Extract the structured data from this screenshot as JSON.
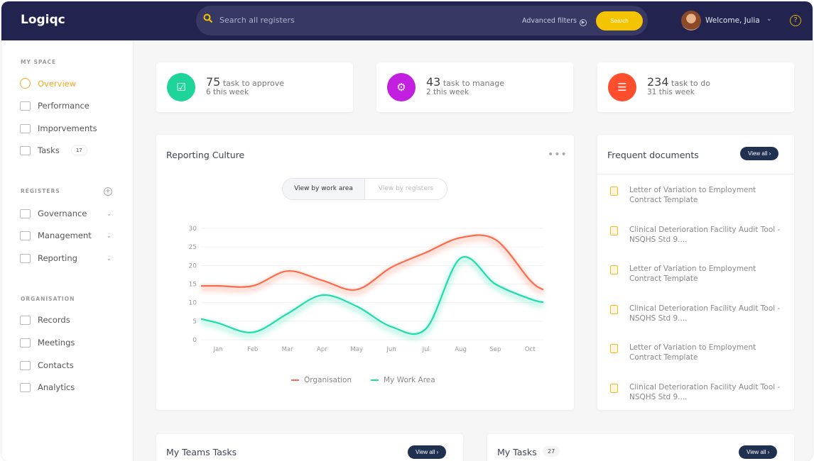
{
  "header": {
    "logo": "Logiqc",
    "search_placeholder": "Search all registers",
    "advanced_filters": "Advanced filters",
    "search_button": "Search",
    "welcome": "Welcome, Julia",
    "help": "?"
  },
  "sidebar": {
    "my_space": "MY SPACE",
    "registers": "REGISTERS",
    "organisation": "ORGANISATION",
    "items": [
      {
        "label": "Overview",
        "icon": "gauge-icon"
      },
      {
        "label": "Performance",
        "icon": "chart-icon"
      },
      {
        "label": "Imporvements",
        "icon": "thumbs-up-icon"
      },
      {
        "label": "Tasks",
        "icon": "checkbox-icon",
        "badge": "17"
      }
    ],
    "register_items": [
      {
        "label": "Governance",
        "icon": "megaphone-icon"
      },
      {
        "label": "Management",
        "icon": "users-icon"
      },
      {
        "label": "Reporting",
        "icon": "flag-icon"
      }
    ],
    "org_items": [
      {
        "label": "Records",
        "icon": "book-icon"
      },
      {
        "label": "Meetings",
        "icon": "pin-icon"
      },
      {
        "label": "Contacts",
        "icon": "list-icon"
      },
      {
        "label": "Analytics",
        "icon": "bar-chart-icon"
      }
    ]
  },
  "stats": [
    {
      "count": "75",
      "label": "task to approve",
      "sub": "6 this week",
      "color": "#1ed49a",
      "icon": "calendar-check-icon"
    },
    {
      "count": "43",
      "label": "task to manage",
      "sub": "2 this week",
      "color": "#c21fe0",
      "icon": "gear-icon"
    },
    {
      "count": "234",
      "label": "task to do",
      "sub": "31 this week",
      "color": "#ff4e2e",
      "icon": "checklist-icon"
    }
  ],
  "reporting": {
    "title": "Reporting Culture",
    "toggle_on": "View by work area",
    "toggle_off": "View by registers"
  },
  "chart_data": {
    "type": "line",
    "categories": [
      "Jan",
      "Feb",
      "Mar",
      "Apr",
      "May",
      "Jun",
      "Jul",
      "Aug",
      "Sep",
      "Oct"
    ],
    "ylim": [
      0,
      30
    ],
    "yticks": [
      0,
      5,
      10,
      15,
      20,
      25,
      30
    ],
    "grid": true,
    "legend": "bottom",
    "smooth": true,
    "series": [
      {
        "name": "Organisation",
        "color": "#ff6a4a",
        "values": [
          14.5,
          14.5,
          18.5,
          16,
          13.5,
          19.5,
          23.5,
          27.5,
          27,
          16
        ]
      },
      {
        "name": "My Work Area",
        "color": "#1fdcaa",
        "values": [
          4.5,
          2,
          7,
          12,
          9,
          3.5,
          3,
          22,
          15,
          11
        ]
      }
    ]
  },
  "documents": {
    "title": "Frequent documents",
    "view_all": "View all ›",
    "items": [
      {
        "title": "Letter of Variation to Employment Contract Template",
        "type": "pdf"
      },
      {
        "title": "Clinical Deterioration Facility Audit Tool - NSQHS Std 9....",
        "type": "doc"
      },
      {
        "title": "Letter of Variation to Employment Contract Template",
        "type": "pdf"
      },
      {
        "title": "Clinical Deterioration Facility Audit Tool - NSQHS Std 9....",
        "type": "doc"
      },
      {
        "title": "Letter of Variation to Employment Contract Template",
        "type": "pdf"
      },
      {
        "title": "Clinical Deterioration Facility Audit Tool - NSQHS Std 9....",
        "type": "doc"
      }
    ]
  },
  "team_tasks": {
    "title": "My Teams Tasks",
    "view_all": "View all ›"
  },
  "my_tasks": {
    "title": "My Tasks",
    "count": "27",
    "view_all": "View all ›"
  }
}
